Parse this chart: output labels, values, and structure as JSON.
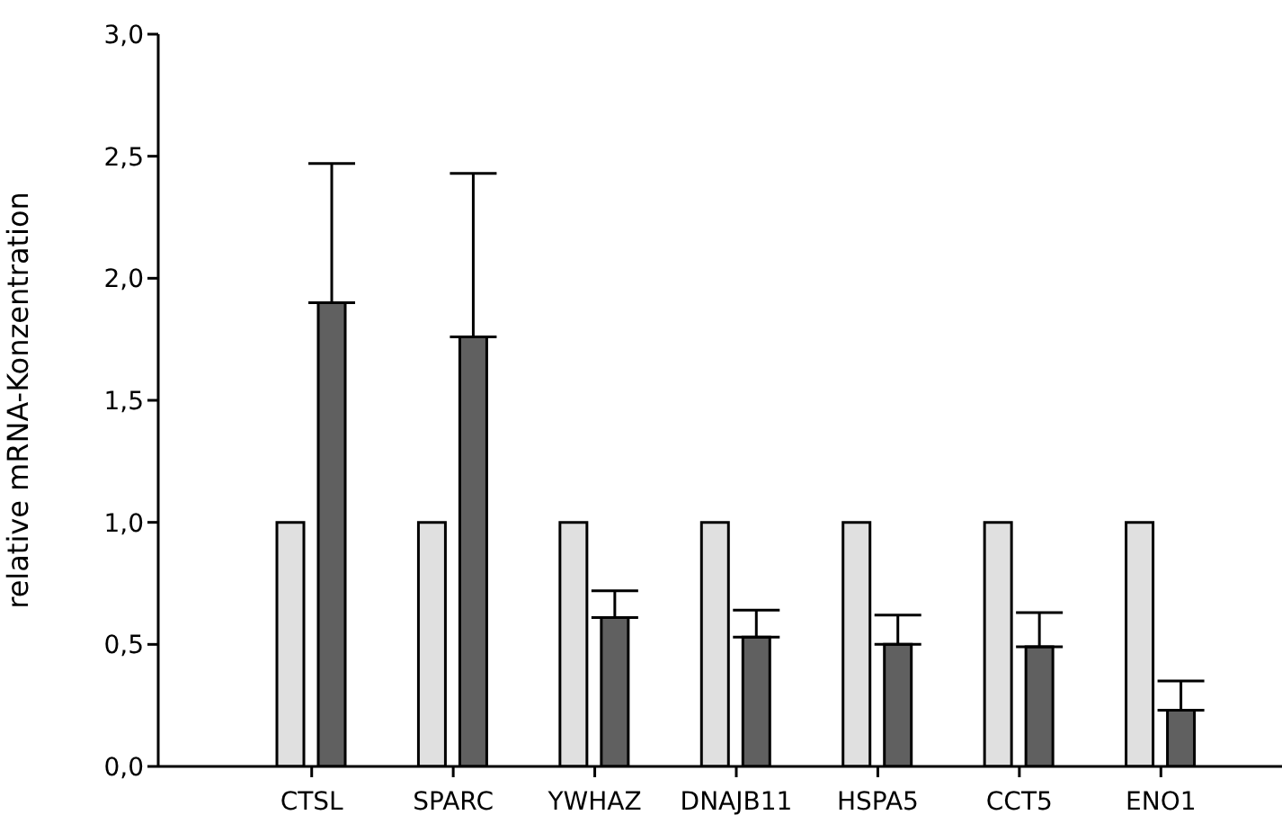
{
  "chart_data": {
    "type": "bar",
    "ylabel": "relative mRNA-Konzentration",
    "categories": [
      "CTSL",
      "SPARC",
      "YWHAZ",
      "DNAJB11",
      "HSPA5",
      "CCT5",
      "ENO1"
    ],
    "series": [
      {
        "color": "#e0e0e0",
        "values": [
          1,
          1,
          1,
          1,
          1,
          1,
          1
        ]
      },
      {
        "color": "#606060",
        "values": [
          1.9,
          1.76,
          0.61,
          0.53,
          0.5,
          0.49,
          0.23
        ],
        "errors": [
          [
            1.9,
            2.47
          ],
          [
            1.76,
            2.43
          ],
          [
            0.61,
            0.72
          ],
          [
            0.53,
            0.64
          ],
          [
            0.5,
            0.62
          ],
          [
            0.49,
            0.63
          ],
          [
            0.23,
            0.35
          ]
        ]
      }
    ],
    "ylim": [
      0,
      3
    ],
    "yticks": [
      {
        "value": 0,
        "label": "0,0"
      },
      {
        "value": 0.5,
        "label": "0,5"
      },
      {
        "value": 1,
        "label": "1,0"
      },
      {
        "value": 1.5,
        "label": "1,5"
      },
      {
        "value": 2,
        "label": "2,0"
      },
      {
        "value": 2.5,
        "label": "2,5"
      },
      {
        "value": 3,
        "label": "3,0"
      }
    ],
    "grid": false,
    "legend": false
  }
}
